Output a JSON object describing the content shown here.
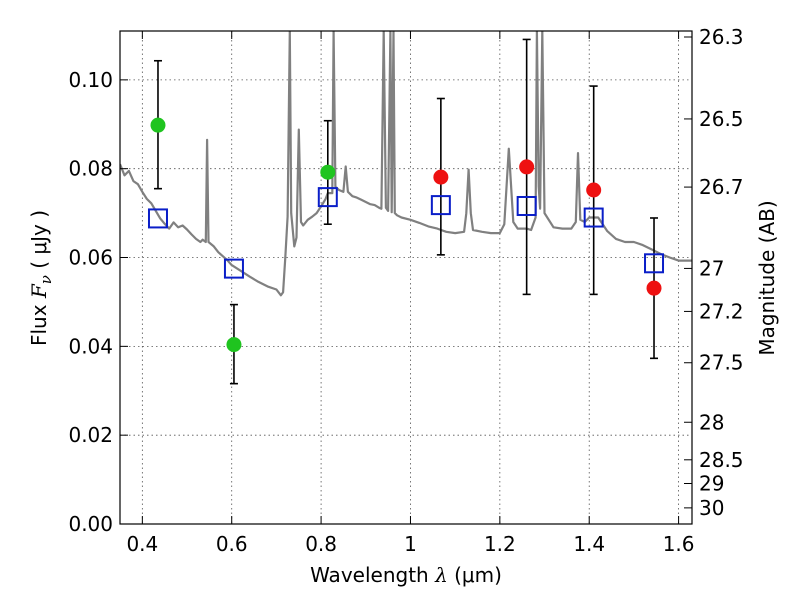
{
  "chart_data": {
    "type": "scatter",
    "xlabel": {
      "prefix": "Wavelength  ",
      "symbol": "λ",
      "suffix": " (μm)"
    },
    "ylabel": {
      "prefix": "Flux  ",
      "symbol": "F",
      "subscript": "ν",
      "suffix": "  ( μJy )"
    },
    "ylabel_right": "Magnitude (AB)",
    "xlim": [
      0.35,
      1.63
    ],
    "ylim": [
      0.0,
      0.111
    ],
    "grid": true,
    "x_ticks": [
      0.4,
      0.6,
      0.8,
      1.0,
      1.2,
      1.4,
      1.6
    ],
    "x_tick_labels": [
      "0.4",
      "0.6",
      "0.8",
      "1",
      "1.2",
      "1.4",
      "1.6"
    ],
    "y_ticks": [
      0.0,
      0.02,
      0.04,
      0.06,
      0.08,
      0.1
    ],
    "y_tick_labels": [
      "0.00",
      "0.02",
      "0.04",
      "0.06",
      "0.08",
      "0.10"
    ],
    "mag_ticks": [
      26.3,
      26.5,
      26.7,
      27,
      27.2,
      27.5,
      28,
      28.5,
      29,
      30
    ],
    "mag_tick_labels": [
      "26.3",
      "26.5",
      "26.7",
      "27",
      "27.2",
      "27.5",
      "28",
      "28.5",
      "29",
      "30"
    ],
    "mag_zero_point": 23.9,
    "colors": {
      "spectrum": "#808080",
      "green": "#1fc41f",
      "red": "#ee1111",
      "model_box": "#0a1ec8",
      "error_bar": "#000000",
      "grid": "#555555"
    },
    "series": [
      {
        "name": "green-points",
        "marker": "circle",
        "points": [
          {
            "x": 0.435,
            "y": 0.0898,
            "yerr_low": 0.0755,
            "yerr_high": 0.1043
          },
          {
            "x": 0.605,
            "y": 0.0404,
            "yerr_low": 0.0316,
            "yerr_high": 0.0494
          },
          {
            "x": 0.815,
            "y": 0.0792,
            "yerr_low": 0.0675,
            "yerr_high": 0.0908
          }
        ]
      },
      {
        "name": "red-points",
        "marker": "circle",
        "points": [
          {
            "x": 1.068,
            "y": 0.0781,
            "yerr_low": 0.0606,
            "yerr_high": 0.0958
          },
          {
            "x": 1.26,
            "y": 0.0804,
            "yerr_low": 0.0517,
            "yerr_high": 0.1091
          },
          {
            "x": 1.41,
            "y": 0.0752,
            "yerr_low": 0.0517,
            "yerr_high": 0.0986
          },
          {
            "x": 1.545,
            "y": 0.0531,
            "yerr_low": 0.0373,
            "yerr_high": 0.0689
          }
        ]
      },
      {
        "name": "model-photometry",
        "marker": "square",
        "points": [
          {
            "x": 0.435,
            "y": 0.0688
          },
          {
            "x": 0.605,
            "y": 0.0575
          },
          {
            "x": 0.815,
            "y": 0.0736
          },
          {
            "x": 1.068,
            "y": 0.0718
          },
          {
            "x": 1.26,
            "y": 0.0716
          },
          {
            "x": 1.41,
            "y": 0.069
          },
          {
            "x": 1.545,
            "y": 0.0587
          }
        ]
      }
    ],
    "spectrum": [
      [
        0.35,
        0.081
      ],
      [
        0.36,
        0.0785
      ],
      [
        0.37,
        0.0795
      ],
      [
        0.38,
        0.0772
      ],
      [
        0.39,
        0.0765
      ],
      [
        0.4,
        0.0748
      ],
      [
        0.41,
        0.0732
      ],
      [
        0.42,
        0.0722
      ],
      [
        0.43,
        0.0705
      ],
      [
        0.44,
        0.0688
      ],
      [
        0.45,
        0.0676
      ],
      [
        0.46,
        0.0665
      ],
      [
        0.47,
        0.0679
      ],
      [
        0.48,
        0.0668
      ],
      [
        0.49,
        0.0672
      ],
      [
        0.5,
        0.0663
      ],
      [
        0.51,
        0.0652
      ],
      [
        0.52,
        0.0642
      ],
      [
        0.53,
        0.0635
      ],
      [
        0.535,
        0.064
      ],
      [
        0.542,
        0.0635
      ],
      [
        0.545,
        0.0865
      ],
      [
        0.548,
        0.0635
      ],
      [
        0.56,
        0.0625
      ],
      [
        0.57,
        0.0612
      ],
      [
        0.58,
        0.0603
      ],
      [
        0.59,
        0.0594
      ],
      [
        0.6,
        0.0583
      ],
      [
        0.62,
        0.057
      ],
      [
        0.64,
        0.0557
      ],
      [
        0.66,
        0.0545
      ],
      [
        0.68,
        0.0535
      ],
      [
        0.7,
        0.0528
      ],
      [
        0.71,
        0.0515
      ],
      [
        0.715,
        0.0522
      ],
      [
        0.72,
        0.06
      ],
      [
        0.725,
        0.0692
      ],
      [
        0.73,
        0.111
      ],
      [
        0.733,
        0.07
      ],
      [
        0.74,
        0.0625
      ],
      [
        0.745,
        0.0645
      ],
      [
        0.75,
        0.0888
      ],
      [
        0.755,
        0.068
      ],
      [
        0.76,
        0.0672
      ],
      [
        0.77,
        0.0685
      ],
      [
        0.78,
        0.0692
      ],
      [
        0.79,
        0.07
      ],
      [
        0.8,
        0.0715
      ],
      [
        0.81,
        0.0732
      ],
      [
        0.815,
        0.0745
      ],
      [
        0.82,
        0.0745
      ],
      [
        0.825,
        0.0745
      ],
      [
        0.828,
        0.111
      ],
      [
        0.832,
        0.076
      ],
      [
        0.84,
        0.0752
      ],
      [
        0.85,
        0.0748
      ],
      [
        0.855,
        0.0805
      ],
      [
        0.86,
        0.0748
      ],
      [
        0.87,
        0.0738
      ],
      [
        0.88,
        0.0735
      ],
      [
        0.89,
        0.073
      ],
      [
        0.9,
        0.0725
      ],
      [
        0.91,
        0.072
      ],
      [
        0.92,
        0.0718
      ],
      [
        0.93,
        0.0712
      ],
      [
        0.935,
        0.071
      ],
      [
        0.94,
        0.111
      ],
      [
        0.945,
        0.0712
      ],
      [
        0.95,
        0.0705
      ],
      [
        0.955,
        0.111
      ],
      [
        0.958,
        0.0702
      ],
      [
        0.962,
        0.111
      ],
      [
        0.965,
        0.07
      ],
      [
        0.97,
        0.0695
      ],
      [
        0.98,
        0.069
      ],
      [
        1.0,
        0.0685
      ],
      [
        1.02,
        0.0678
      ],
      [
        1.04,
        0.067
      ],
      [
        1.06,
        0.0665
      ],
      [
        1.08,
        0.0658
      ],
      [
        1.1,
        0.0655
      ],
      [
        1.12,
        0.0658
      ],
      [
        1.125,
        0.07
      ],
      [
        1.13,
        0.0798
      ],
      [
        1.135,
        0.07
      ],
      [
        1.14,
        0.0662
      ],
      [
        1.16,
        0.0658
      ],
      [
        1.18,
        0.0655
      ],
      [
        1.2,
        0.0655
      ],
      [
        1.21,
        0.0675
      ],
      [
        1.22,
        0.0845
      ],
      [
        1.23,
        0.068
      ],
      [
        1.24,
        0.0665
      ],
      [
        1.26,
        0.0665
      ],
      [
        1.27,
        0.0662
      ],
      [
        1.28,
        0.069
      ],
      [
        1.283,
        0.111
      ],
      [
        1.287,
        0.076
      ],
      [
        1.29,
        0.071
      ],
      [
        1.295,
        0.111
      ],
      [
        1.3,
        0.07
      ],
      [
        1.32,
        0.0668
      ],
      [
        1.34,
        0.0665
      ],
      [
        1.36,
        0.0665
      ],
      [
        1.37,
        0.068
      ],
      [
        1.375,
        0.0835
      ],
      [
        1.38,
        0.0685
      ],
      [
        1.39,
        0.068
      ],
      [
        1.4,
        0.069
      ],
      [
        1.42,
        0.069
      ],
      [
        1.44,
        0.066
      ],
      [
        1.46,
        0.0642
      ],
      [
        1.48,
        0.0635
      ],
      [
        1.5,
        0.0635
      ],
      [
        1.52,
        0.0628
      ],
      [
        1.54,
        0.0618
      ],
      [
        1.56,
        0.0608
      ],
      [
        1.58,
        0.06
      ],
      [
        1.6,
        0.0593
      ],
      [
        1.63,
        0.0593
      ]
    ]
  }
}
